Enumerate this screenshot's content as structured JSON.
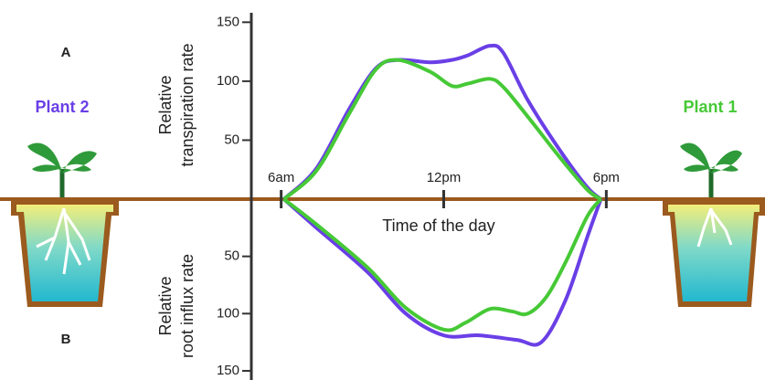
{
  "chart_data": [
    {
      "type": "line",
      "panel": "A",
      "ylabel": [
        "Relative",
        "transpiration rate"
      ],
      "xlabel": "Time of the day",
      "x": [
        6.1,
        7.3,
        8.5,
        9.5,
        10.3,
        11.5,
        12.3,
        12.9,
        13.7,
        14.2,
        15.1,
        16.3,
        17.3,
        17.8
      ],
      "xlim": [
        4.9,
        19
      ],
      "xticks": [
        {
          "value": 6,
          "label": "6am"
        },
        {
          "value": 12,
          "label": "12pm"
        },
        {
          "value": 18,
          "label": "6pm"
        }
      ],
      "ylim": [
        0,
        158
      ],
      "yticks": [
        50,
        100,
        150
      ],
      "series": [
        {
          "name": "Plant 2",
          "color": "#6a3fe6",
          "values": [
            0,
            26,
            76,
            111,
            118,
            116,
            118,
            122,
            130,
            124,
            84,
            41,
            10,
            0
          ]
        },
        {
          "name": "Plant 1",
          "color": "#46c936",
          "values": [
            0,
            24,
            72,
            110,
            118,
            108,
            96,
            98,
            102,
            95,
            70,
            35,
            8,
            0
          ]
        }
      ]
    },
    {
      "type": "line",
      "panel": "B",
      "ylabel": [
        "Relative",
        "root influx rate"
      ],
      "inverted": true,
      "x": [
        6.1,
        7.3,
        9.2,
        10.6,
        12,
        12.8,
        13.3,
        13.7,
        14.5,
        14.7,
        15.1,
        15.6,
        15.8,
        16.5,
        17.3,
        17.8
      ],
      "xlim": [
        4.9,
        19
      ],
      "ylim": [
        0,
        158
      ],
      "yticks": [
        50,
        100,
        150
      ],
      "series": [
        {
          "color": "#6a3fe6",
          "values": [
            0,
            25,
            64,
            100,
            119,
            null,
            119,
            null,
            null,
            123,
            null,
            125,
            null,
            88,
            33,
            0
          ]
        },
        {
          "color": "#46c936",
          "values": [
            0,
            22,
            60,
            95,
            114,
            108,
            null,
            96,
            98,
            null,
            100,
            null,
            85,
            55,
            15,
            0
          ]
        }
      ]
    }
  ]
}
